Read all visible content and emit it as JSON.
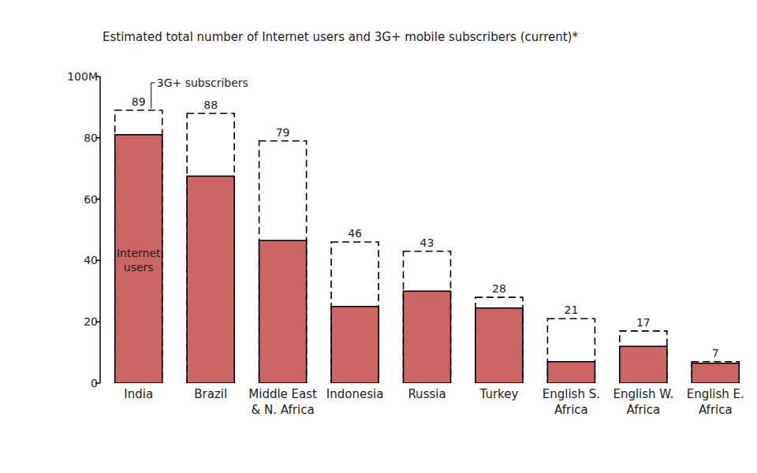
{
  "chart_data": {
    "type": "bar",
    "title": "Estimated total number of Internet users and 3G+ mobile subscribers (current)*",
    "categories": [
      "India",
      "Brazil",
      "Middle East & N. Africa",
      "Indonesia",
      "Russia",
      "Turkey",
      "English S. Africa",
      "English W. Africa",
      "English E. Africa"
    ],
    "series": [
      {
        "name": "Internet users",
        "color": "#cc6666",
        "values": [
          81,
          67.5,
          46.5,
          25,
          30,
          24.5,
          7,
          12,
          6.5
        ]
      },
      {
        "name": "3G+ subscribers",
        "color": "#ffffff",
        "line_style": "dashed",
        "data_labels": true,
        "values": [
          89,
          88,
          79,
          46,
          43,
          28,
          21,
          17,
          7
        ]
      }
    ],
    "ylim": [
      0,
      100
    ],
    "yticks": [
      0,
      20,
      40,
      60,
      80,
      {
        "value": 100,
        "label": "100M"
      }
    ],
    "grid": false
  }
}
